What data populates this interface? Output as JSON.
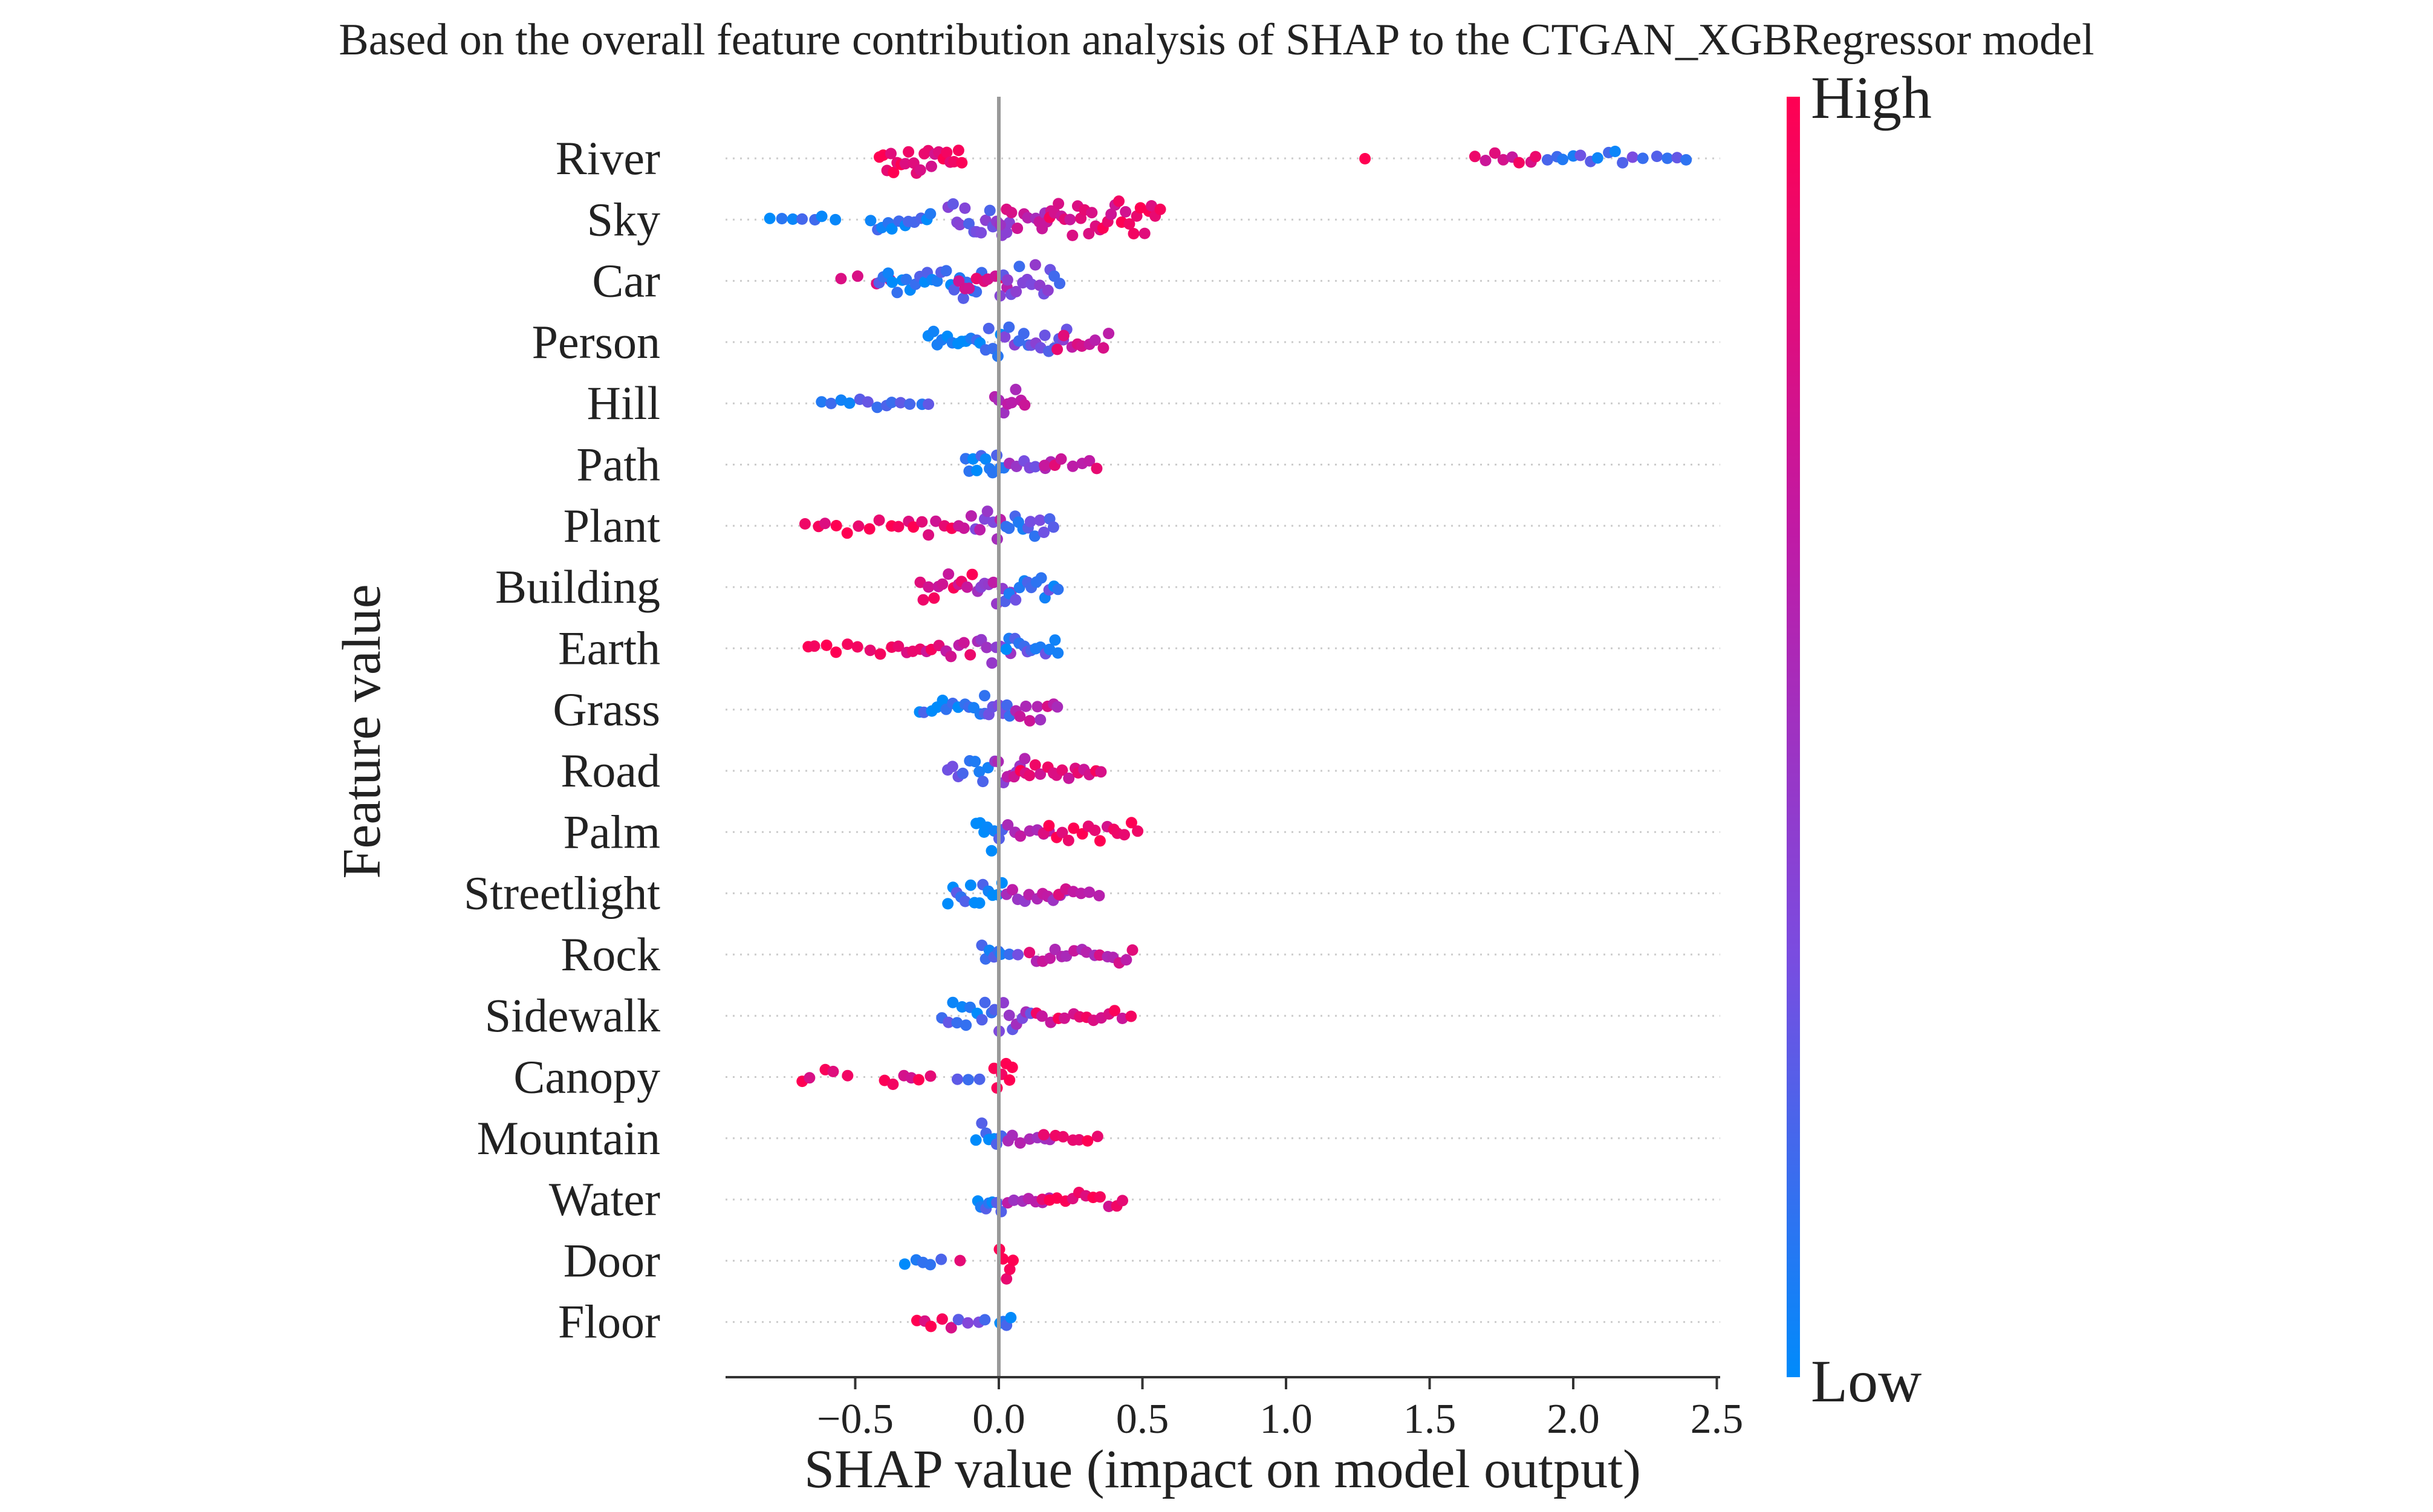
{
  "chart_data": {
    "type": "scatter",
    "subtype": "shap-beeswarm",
    "title": "Based on the overall feature contribution analysis of SHAP to the CTGAN_XGBRegressor model",
    "xlabel": "SHAP value (impact on model output)",
    "ylabel": "Feature value",
    "xlim": [
      -0.95,
      2.55
    ],
    "x_ticks": [
      -0.5,
      0.0,
      0.5,
      1.0,
      1.5,
      2.0,
      2.5
    ],
    "x_tick_labels": [
      "−0.5",
      "0.0",
      "0.5",
      "1.0",
      "1.5",
      "2.0",
      "2.5"
    ],
    "grid": "dotted horizontal lines per feature",
    "colorbar": {
      "high_label": "High",
      "low_label": "Low",
      "colors": [
        "#008bfb",
        "#7a4ce0",
        "#c01aa5",
        "#ff0052"
      ]
    },
    "features": [
      {
        "name": "River",
        "segments": [
          [
            -0.42,
            -0.12,
            0.92,
            10,
            0.95
          ],
          [
            1.25,
            1.3,
            0.9,
            1,
            0.1
          ],
          [
            1.65,
            1.9,
            0.85,
            3,
            0.3
          ],
          [
            1.9,
            2.2,
            0.15,
            3,
            0.35
          ],
          [
            2.2,
            2.42,
            0.2,
            2,
            0.1
          ]
        ]
      },
      {
        "name": "Sky",
        "segments": [
          [
            -0.8,
            -0.55,
            0.05,
            2,
            0.2
          ],
          [
            -0.45,
            -0.22,
            0.1,
            6,
            0.6
          ],
          [
            -0.18,
            0.05,
            0.35,
            9,
            0.9
          ],
          [
            0.0,
            0.2,
            0.65,
            6,
            0.6
          ],
          [
            0.15,
            0.57,
            0.85,
            10,
            1.0
          ]
        ]
      },
      {
        "name": "Car",
        "segments": [
          [
            -0.55,
            -0.35,
            0.85,
            1,
            0.2
          ],
          [
            -0.42,
            -0.05,
            0.1,
            8,
            0.8
          ],
          [
            -0.15,
            0.05,
            0.75,
            5,
            0.5
          ],
          [
            0.0,
            0.22,
            0.3,
            9,
            0.95
          ]
        ]
      },
      {
        "name": "Person",
        "segments": [
          [
            -0.25,
            -0.05,
            0.05,
            7,
            0.6
          ],
          [
            -0.05,
            0.02,
            0.1,
            10,
            1.0
          ],
          [
            0.02,
            0.25,
            0.3,
            8,
            0.7
          ],
          [
            0.2,
            0.4,
            0.75,
            5,
            0.4
          ]
        ]
      },
      {
        "name": "Hill",
        "segments": [
          [
            -0.62,
            -0.22,
            0.12,
            3,
            0.12
          ],
          [
            -0.02,
            0.1,
            0.65,
            8,
            0.7
          ]
        ]
      },
      {
        "name": "Path",
        "segments": [
          [
            -0.12,
            0.03,
            0.08,
            9,
            0.9
          ],
          [
            0.03,
            0.2,
            0.45,
            4,
            0.3
          ],
          [
            0.15,
            0.37,
            0.8,
            3,
            0.25
          ]
        ]
      },
      {
        "name": "Plant",
        "segments": [
          [
            -0.68,
            -0.35,
            0.9,
            2,
            0.3
          ],
          [
            -0.35,
            -0.1,
            0.85,
            4,
            0.5
          ],
          [
            -0.1,
            0.02,
            0.5,
            8,
            0.8
          ],
          [
            0.02,
            0.2,
            0.2,
            8,
            0.75
          ]
        ]
      },
      {
        "name": "Building",
        "segments": [
          [
            -0.28,
            -0.08,
            0.85,
            7,
            0.7
          ],
          [
            -0.08,
            0.05,
            0.55,
            9,
            0.9
          ],
          [
            0.02,
            0.22,
            0.15,
            8,
            0.8
          ]
        ]
      },
      {
        "name": "Earth",
        "segments": [
          [
            -0.68,
            -0.35,
            0.88,
            2,
            0.3
          ],
          [
            -0.35,
            -0.08,
            0.8,
            5,
            0.5
          ],
          [
            -0.08,
            0.05,
            0.4,
            8,
            0.8
          ],
          [
            0.02,
            0.22,
            0.15,
            8,
            0.8
          ]
        ]
      },
      {
        "name": "Grass",
        "segments": [
          [
            -0.28,
            -0.03,
            0.05,
            6,
            0.5
          ],
          [
            -0.05,
            0.05,
            0.25,
            9,
            0.9
          ],
          [
            0.05,
            0.22,
            0.65,
            6,
            0.6
          ]
        ]
      },
      {
        "name": "Road",
        "segments": [
          [
            -0.18,
            -0.02,
            0.2,
            7,
            0.6
          ],
          [
            -0.02,
            0.1,
            0.5,
            9,
            0.9
          ],
          [
            0.05,
            0.37,
            0.85,
            6,
            0.4
          ]
        ]
      },
      {
        "name": "Palm",
        "segments": [
          [
            -0.08,
            0.02,
            0.08,
            10,
            0.95
          ],
          [
            0.02,
            0.2,
            0.55,
            4,
            0.3
          ],
          [
            0.15,
            0.5,
            0.92,
            5,
            0.5
          ]
        ]
      },
      {
        "name": "Streetlight",
        "segments": [
          [
            -0.18,
            0.02,
            0.1,
            8,
            0.8
          ],
          [
            0.02,
            0.25,
            0.6,
            5,
            0.4
          ],
          [
            0.2,
            0.37,
            0.75,
            3,
            0.25
          ]
        ]
      },
      {
        "name": "Rock",
        "segments": [
          [
            -0.06,
            0.02,
            0.08,
            9,
            0.8
          ],
          [
            0.02,
            0.1,
            0.2,
            2,
            0.1
          ],
          [
            0.1,
            0.48,
            0.7,
            5,
            0.45
          ]
        ]
      },
      {
        "name": "Sidewalk",
        "segments": [
          [
            -0.2,
            0.0,
            0.12,
            7,
            0.6
          ],
          [
            0.0,
            0.12,
            0.4,
            9,
            0.9
          ],
          [
            0.12,
            0.48,
            0.85,
            4,
            0.35
          ]
        ]
      },
      {
        "name": "Canopy",
        "segments": [
          [
            -0.7,
            -0.5,
            0.9,
            2,
            0.3
          ],
          [
            -0.4,
            -0.22,
            0.88,
            3,
            0.3
          ],
          [
            -0.15,
            -0.05,
            0.2,
            2,
            0.1
          ],
          [
            -0.02,
            0.06,
            0.95,
            10,
            0.95
          ]
        ]
      },
      {
        "name": "Mountain",
        "segments": [
          [
            -0.08,
            0.02,
            0.08,
            9,
            0.85
          ],
          [
            0.02,
            0.2,
            0.55,
            4,
            0.3
          ],
          [
            0.15,
            0.37,
            0.88,
            3,
            0.25
          ]
        ]
      },
      {
        "name": "Water",
        "segments": [
          [
            -0.08,
            0.02,
            0.08,
            9,
            0.85
          ],
          [
            0.02,
            0.2,
            0.5,
            4,
            0.3
          ],
          [
            0.15,
            0.45,
            0.88,
            4,
            0.35
          ]
        ]
      },
      {
        "name": "Door",
        "segments": [
          [
            -0.33,
            -0.18,
            0.08,
            3,
            0.2
          ],
          [
            -0.15,
            -0.12,
            0.9,
            1,
            0.15
          ],
          [
            0.0,
            0.06,
            0.95,
            10,
            0.95
          ]
        ]
      },
      {
        "name": "Floor",
        "segments": [
          [
            -0.3,
            -0.15,
            0.9,
            3,
            0.25
          ],
          [
            -0.15,
            -0.02,
            0.3,
            3,
            0.2
          ],
          [
            0.0,
            0.05,
            0.05,
            9,
            0.9
          ]
        ]
      }
    ]
  }
}
